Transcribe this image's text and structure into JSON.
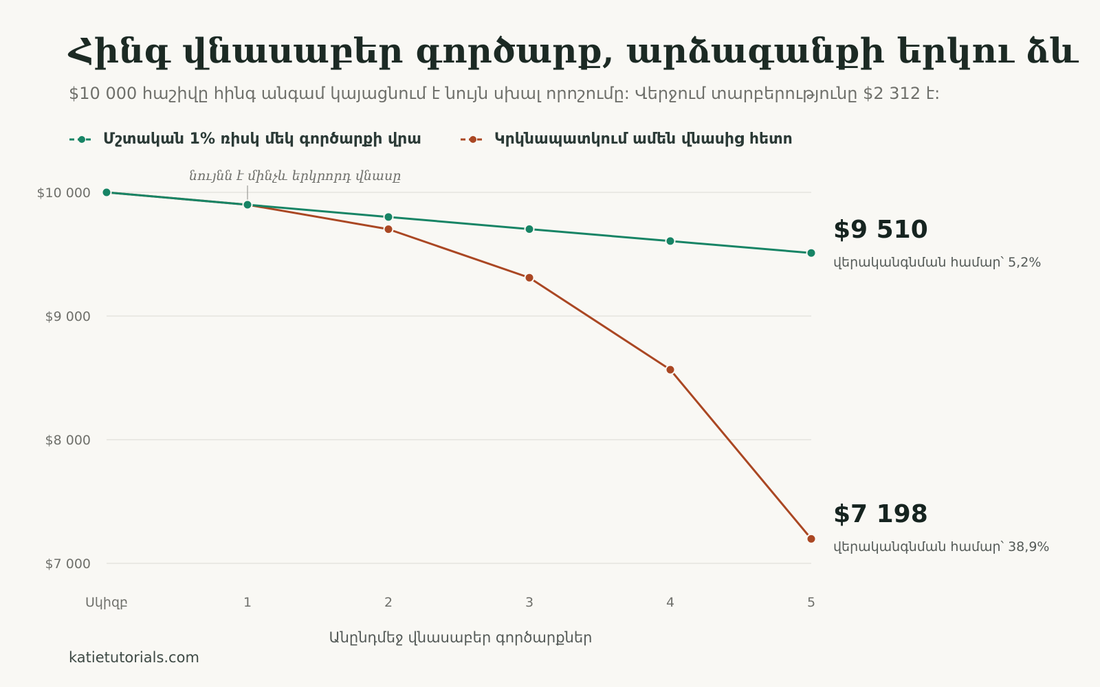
{
  "title": "Հինգ վնասաբեր գործարք, արձագանքի երկու ձև",
  "subtitle": "$10 000 հաշիվը հինգ անգամ կայացնում է նույն սխալ որոշումը: Վերջում տարբերությունը $2 312 է:",
  "footer": "katietutorials.com",
  "colors": {
    "green": "#178465",
    "orange": "#aa4723",
    "grid": "#e6e4de"
  },
  "chart_data": {
    "type": "line",
    "x": [
      0,
      1,
      2,
      3,
      4,
      5
    ],
    "x_tick_labels": [
      "Սկիզբ",
      "1",
      "2",
      "3",
      "4",
      "5"
    ],
    "xlabel": "Անընդմեջ վնասաբեր գործարքներ",
    "ylabel": "",
    "ylim": [
      7000,
      10000
    ],
    "y_ticks": [
      10000,
      9000,
      8000,
      7000
    ],
    "y_tick_labels": [
      "$10 000",
      "$9 000",
      "$8 000",
      "$7 000"
    ],
    "grid": true,
    "legend_position": "top-left",
    "series": [
      {
        "name": "Մշտական 1% ռիսկ մեկ գործարքի վրա",
        "color": "#178465",
        "values": [
          10000,
          9900,
          9801,
          9703,
          9606,
          9510
        ],
        "end_label": "$9 510",
        "end_note": "վերականգնման համար՝ 5,2%"
      },
      {
        "name": "Կրկնապատկում ամեն վնասից հետո",
        "color": "#aa4723",
        "values": [
          10000,
          9900,
          9702,
          9310,
          8566,
          7198
        ],
        "end_label": "$7 198",
        "end_note": "վերականգնման համար՝ 38,9%"
      }
    ],
    "annotations": [
      {
        "x": 1,
        "text": "նույնն է մինչև երկրորդ վնասը"
      }
    ]
  }
}
